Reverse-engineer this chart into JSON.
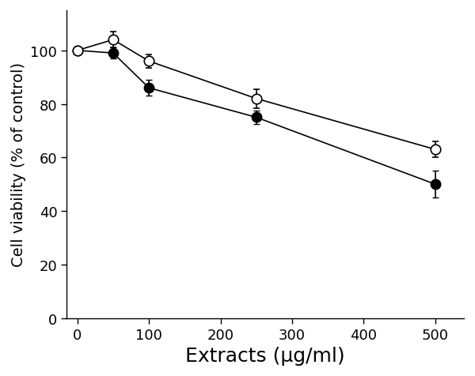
{
  "x": [
    0,
    50,
    100,
    250,
    500
  ],
  "series1_y": [
    100,
    99,
    86,
    75,
    50
  ],
  "series1_yerr": [
    1.0,
    2.0,
    3.0,
    2.5,
    5.0
  ],
  "series2_y": [
    100,
    104,
    96,
    82,
    63
  ],
  "series2_yerr": [
    1.0,
    3.0,
    2.5,
    3.5,
    3.0
  ],
  "xlabel": "Extracts (μg/ml)",
  "ylabel": "Cell viability (% of control)",
  "xlim": [
    -15,
    540
  ],
  "ylim": [
    0,
    115
  ],
  "xticks": [
    0,
    100,
    200,
    300,
    400,
    500
  ],
  "yticks": [
    0,
    20,
    40,
    60,
    80,
    100
  ],
  "marker_size": 9,
  "linewidth": 1.2,
  "capsize": 3,
  "elinewidth": 1.2,
  "xlabel_fontsize": 18,
  "ylabel_fontsize": 14,
  "tick_fontsize": 13,
  "background_color": "#ffffff"
}
